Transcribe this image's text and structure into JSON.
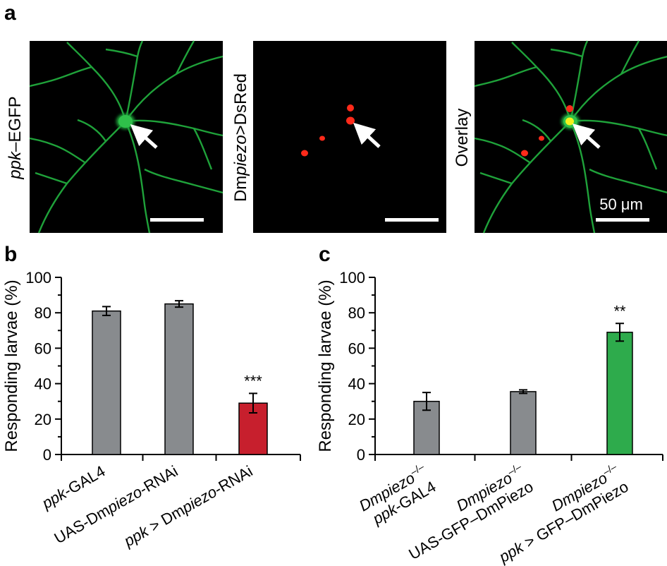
{
  "panel_a": {
    "letter": "a",
    "images": [
      {
        "label_pre": "",
        "label_ital": "ppk",
        "label_post": "–EGFP",
        "scale_text": ""
      },
      {
        "label_pre": "Dm",
        "label_ital": "piezo",
        "label_post": ">DsRed",
        "scale_text": ""
      },
      {
        "label_pre": "Overlay",
        "label_ital": "",
        "label_post": "",
        "scale_text": "50 μm"
      }
    ],
    "colors": {
      "neuron": "#1fa23a",
      "dsred": "#ff2a1a",
      "overlay_soma": "#f4f21e",
      "arrow": "#ffffff"
    }
  },
  "chart_data": [
    {
      "panel": "b",
      "type": "bar",
      "categories": [
        {
          "ital": "ppk",
          "rest": "-GAL4"
        },
        {
          "pre": "UAS-Dm",
          "ital": "piezo",
          "rest": "-RNAi"
        },
        {
          "ital": "ppk",
          "rest": " > Dm",
          "ital2": "piezo",
          "rest2": "-RNAi"
        }
      ],
      "values": [
        81,
        85,
        29
      ],
      "errors": [
        2.5,
        1.8,
        5.5
      ],
      "significance": [
        "",
        "",
        "***"
      ],
      "colors": [
        "#888b8e",
        "#888b8e",
        "#c71f2d"
      ],
      "ylabel": "Responding larvae (%)",
      "ylim": [
        0,
        100
      ],
      "yticks": [
        "0",
        "20",
        "40",
        "60",
        "80",
        "100"
      ]
    },
    {
      "panel": "c",
      "type": "bar",
      "categories": [
        {
          "line1_ital": "Dmpiezo",
          "line1_sup": "–/–",
          "line2_ital": "ppk",
          "line2_rest": "-GAL4"
        },
        {
          "line1_ital": "Dmpiezo",
          "line1_sup": "–/–",
          "line2_rest": "UAS-GFP–DmPiezo"
        },
        {
          "line1_ital": "Dmpiezo",
          "line1_sup": "–/–",
          "line2_ital": "ppk",
          "line2_rest": " > GFP–DmPiezo"
        }
      ],
      "values": [
        30,
        35.5,
        69
      ],
      "errors": [
        5,
        1,
        5
      ],
      "significance": [
        "",
        "",
        "**"
      ],
      "colors": [
        "#888b8e",
        "#888b8e",
        "#2eab4c"
      ],
      "ylabel": "Responding larvae (%)",
      "ylim": [
        0,
        100
      ],
      "yticks": [
        "0",
        "20",
        "40",
        "60",
        "80",
        "100"
      ]
    }
  ]
}
